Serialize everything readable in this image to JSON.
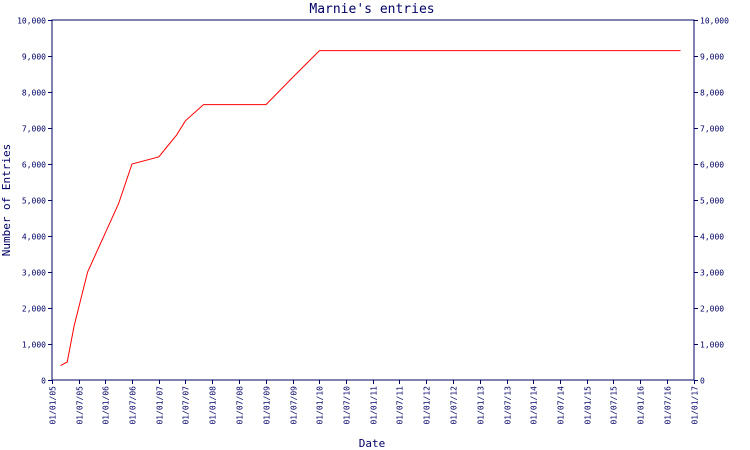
{
  "colors": {
    "axis": "#000066",
    "line": "#ff0000",
    "text": "#000066",
    "background": "#ffffff"
  },
  "chart_data": {
    "type": "line",
    "title": "Marnie's entries",
    "xlabel": "Date",
    "ylabel": "Number of Entries",
    "grid": false,
    "legend": "none",
    "xlim": [
      "2005-01-01",
      "2017-01-01"
    ],
    "ylim": [
      0,
      10000
    ],
    "y_ticks": [
      0,
      1000,
      2000,
      3000,
      4000,
      5000,
      6000,
      7000,
      8000,
      9000,
      10000
    ],
    "y_tick_labels": [
      "0",
      "1,000",
      "2,000",
      "3,000",
      "4,000",
      "5,000",
      "6,000",
      "7,000",
      "8,000",
      "9,000",
      "10,000"
    ],
    "y_tick_labels_right": [
      "0",
      "1,000",
      "2,000",
      "3,000",
      "4,000",
      "5,000",
      "6,000",
      "7,000",
      "8,000",
      "9,000",
      "10,000"
    ],
    "x_ticks": [
      {
        "date": "2005-01-01",
        "label": "01/01/05"
      },
      {
        "date": "2005-07-01",
        "label": "01/07/05"
      },
      {
        "date": "2006-01-01",
        "label": "01/01/06"
      },
      {
        "date": "2006-07-01",
        "label": "01/07/06"
      },
      {
        "date": "2007-01-01",
        "label": "01/01/07"
      },
      {
        "date": "2007-07-01",
        "label": "01/07/07"
      },
      {
        "date": "2008-01-01",
        "label": "01/01/08"
      },
      {
        "date": "2008-07-01",
        "label": "01/07/08"
      },
      {
        "date": "2009-01-01",
        "label": "01/01/09"
      },
      {
        "date": "2009-07-01",
        "label": "01/07/09"
      },
      {
        "date": "2010-01-01",
        "label": "01/01/10"
      },
      {
        "date": "2010-07-01",
        "label": "01/07/10"
      },
      {
        "date": "2011-01-01",
        "label": "01/01/11"
      },
      {
        "date": "2011-07-01",
        "label": "01/07/11"
      },
      {
        "date": "2012-01-01",
        "label": "01/01/12"
      },
      {
        "date": "2012-07-01",
        "label": "01/07/12"
      },
      {
        "date": "2013-01-01",
        "label": "01/01/13"
      },
      {
        "date": "2013-07-01",
        "label": "01/07/13"
      },
      {
        "date": "2014-01-01",
        "label": "01/01/14"
      },
      {
        "date": "2014-07-01",
        "label": "01/07/14"
      },
      {
        "date": "2015-01-01",
        "label": "01/01/15"
      },
      {
        "date": "2015-07-01",
        "label": "01/07/15"
      },
      {
        "date": "2016-01-01",
        "label": "01/01/16"
      },
      {
        "date": "2016-07-01",
        "label": "01/07/16"
      },
      {
        "date": "2017-01-01",
        "label": "01/01/17"
      }
    ],
    "series": [
      {
        "points": [
          {
            "x": "2005-03-01",
            "y": 400
          },
          {
            "x": "2005-04-15",
            "y": 500
          },
          {
            "x": "2005-06-01",
            "y": 1500
          },
          {
            "x": "2005-09-01",
            "y": 3000
          },
          {
            "x": "2006-04-01",
            "y": 4900
          },
          {
            "x": "2006-07-01",
            "y": 6000
          },
          {
            "x": "2007-01-01",
            "y": 6200
          },
          {
            "x": "2007-03-01",
            "y": 6500
          },
          {
            "x": "2007-05-01",
            "y": 6800
          },
          {
            "x": "2007-07-01",
            "y": 7200
          },
          {
            "x": "2007-11-01",
            "y": 7650
          },
          {
            "x": "2009-01-01",
            "y": 7650
          },
          {
            "x": "2009-07-01",
            "y": 8400
          },
          {
            "x": "2010-01-01",
            "y": 9150
          },
          {
            "x": "2016-10-01",
            "y": 9150
          }
        ]
      }
    ]
  }
}
